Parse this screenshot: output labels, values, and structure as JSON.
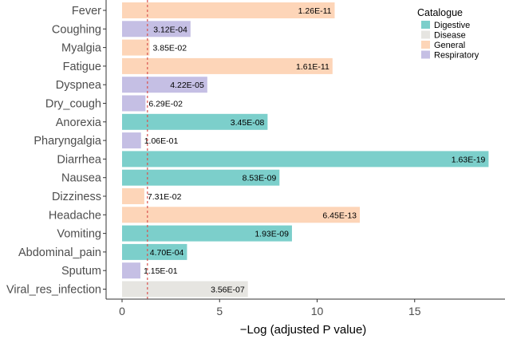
{
  "chart_data": {
    "type": "bar",
    "orientation": "horizontal",
    "title": "",
    "xlabel": "−Log (adjusted P value)",
    "ylabel": "",
    "xlim": [
      -0.6,
      19.5
    ],
    "xticks": [
      0,
      5,
      10,
      15
    ],
    "threshold_line": 1.30103,
    "categories": [
      "Fever",
      "Coughing",
      "Myalgia",
      "Fatigue",
      "Dyspnea",
      "Dry_cough",
      "Anorexia",
      "Pharyngalgia",
      "Diarrhea",
      "Nausea",
      "Dizziness",
      "Headache",
      "Vomiting",
      "Abdominal_pain",
      "Sputum",
      "Viral_res_infection"
    ],
    "values": [
      10.9,
      3.51,
      1.41,
      10.79,
      4.37,
      1.2,
      7.46,
      0.97,
      18.79,
      8.07,
      1.14,
      12.19,
      8.71,
      3.33,
      0.94,
      6.45
    ],
    "labels": [
      "1.26E-11",
      "3.12E-04",
      "3.85E-02",
      "1.61E-11",
      "4.22E-05",
      "6.29E-02",
      "3.45E-08",
      "1.06E-01",
      "1.63E-19",
      "8.53E-09",
      "7.31E-02",
      "6.45E-13",
      "1.93E-09",
      "4.70E-04",
      "1.15E-01",
      "3.56E-07"
    ],
    "groups": [
      "General",
      "Respiratory",
      "General",
      "General",
      "Respiratory",
      "Respiratory",
      "Digestive",
      "Respiratory",
      "Digestive",
      "Digestive",
      "General",
      "General",
      "Digestive",
      "Digestive",
      "Respiratory",
      "Disease"
    ],
    "legend": {
      "title": "Catalogue",
      "position": "top-right",
      "entries": [
        {
          "name": "Digestive",
          "color": "#7ccfcb"
        },
        {
          "name": "Disease",
          "color": "#e6e5e1"
        },
        {
          "name": "General",
          "color": "#fdd5b8"
        },
        {
          "name": "Respiratory",
          "color": "#c5bfe4"
        }
      ]
    }
  }
}
